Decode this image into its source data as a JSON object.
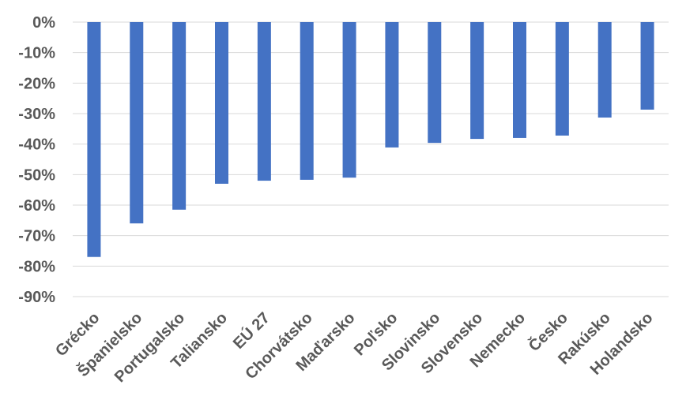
{
  "chart_data": {
    "type": "bar",
    "categories": [
      "Grécko",
      "Španielsko",
      "Portugalsko",
      "Taliansko",
      "EÚ 27",
      "Chorvátsko",
      "Maďarsko",
      "Poľsko",
      "Slovinsko",
      "Slovensko",
      "Nemecko",
      "Česko",
      "Rakúsko",
      "Holandsko"
    ],
    "values": [
      -77,
      -66,
      -61.5,
      -53,
      -52,
      -51.7,
      -51,
      -41.1,
      -39.6,
      -38.3,
      -38,
      -37.2,
      -31.3,
      -28.7
    ],
    "color": "#4472c4",
    "ylim": [
      -90,
      0
    ],
    "yticks": [
      {
        "value": 0,
        "label": "0%"
      },
      {
        "value": -10,
        "label": "-10%"
      },
      {
        "value": -20,
        "label": "-20%"
      },
      {
        "value": -30,
        "label": "-30%"
      },
      {
        "value": -40,
        "label": "-40%"
      },
      {
        "value": -50,
        "label": "-50%"
      },
      {
        "value": -60,
        "label": "-60%"
      },
      {
        "value": -70,
        "label": "-70%"
      },
      {
        "value": -80,
        "label": "-80%"
      },
      {
        "value": -90,
        "label": "-90%"
      }
    ],
    "grid": true
  }
}
